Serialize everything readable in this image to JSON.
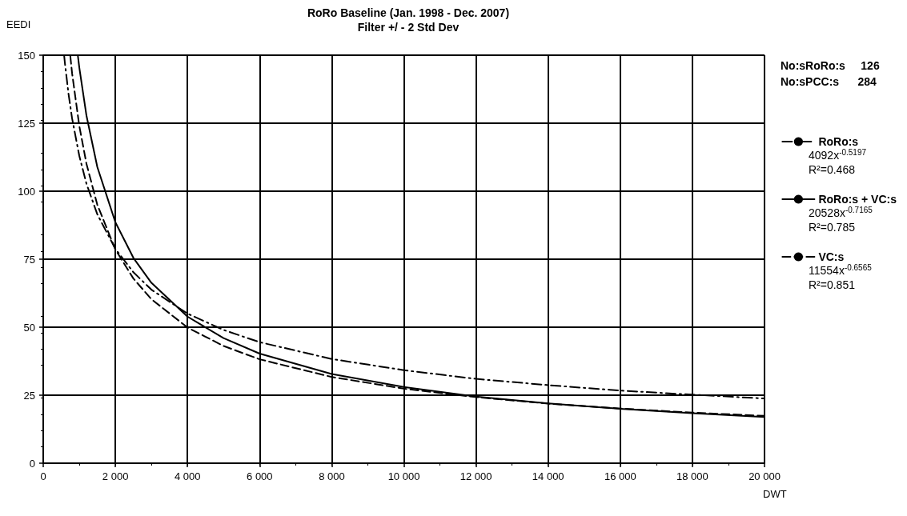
{
  "chart_data": {
    "type": "line",
    "title": "RoRo Baseline (Jan. 1998 - Dec. 2007)",
    "subtitle": "Filter +/ - 2 Std Dev",
    "xlabel": "DWT",
    "ylabel": "EEDI",
    "xlim": [
      0,
      20000
    ],
    "xticks": [
      0,
      {
        "value": 2000,
        "label": "2 000"
      },
      {
        "value": 4000,
        "label": "4 000"
      },
      {
        "value": 6000,
        "label": "6 000"
      },
      {
        "value": 8000,
        "label": "8 000"
      },
      {
        "value": 10000,
        "label": "10 000"
      },
      {
        "value": 12000,
        "label": "12 000"
      },
      {
        "value": 14000,
        "label": "14 000"
      },
      {
        "value": 16000,
        "label": "16 000"
      },
      {
        "value": 18000,
        "label": "18 000"
      },
      {
        "value": 20000,
        "label": "20 000"
      }
    ],
    "ylim": [
      0,
      150
    ],
    "yticks": [
      0,
      25,
      50,
      75,
      100,
      125,
      150
    ],
    "grid": true,
    "legend": "right",
    "marker": "none",
    "annotations": [
      "No:sRoRo:s     126",
      "No:sPCC:s      284",
      "4092x$^{-0.5197}$",
      "R²=0.468",
      "20528x$^{-0.7165}$",
      "R²=0.785",
      "11554x$^{-0.6565}$",
      "R²=0.851"
    ],
    "series": [
      {
        "name": "RoRo:s",
        "color": "#000000",
        "line_style": "dashdot",
        "x": [
          580,
          600,
          700,
          800,
          1000,
          1200,
          1500,
          2000,
          2500,
          3000,
          4000,
          5000,
          6000,
          8000,
          10000,
          12000,
          14000,
          16000,
          18000,
          20000
        ],
        "values": [
          149.9,
          147.2,
          135.9,
          126.8,
          113.0,
          102.7,
          91.5,
          78.8,
          70.2,
          63.8,
          55.0,
          49.0,
          44.5,
          38.3,
          34.2,
          31.0,
          28.7,
          26.7,
          25.2,
          23.8
        ]
      },
      {
        "name": "RoRo:s + VC:s",
        "color": "#000000",
        "line_style": "solid",
        "x": [
          960,
          1000,
          1200,
          1500,
          2000,
          2500,
          3000,
          4000,
          5000,
          6000,
          8000,
          10000,
          12000,
          14000,
          16000,
          18000,
          20000
        ],
        "values": [
          149.9,
          145.5,
          127.7,
          108.9,
          88.6,
          75.5,
          66.3,
          53.9,
          46.0,
          40.3,
          32.8,
          28.0,
          24.5,
          22.0,
          20.0,
          18.4,
          17.0
        ]
      },
      {
        "name": "VC:s",
        "color": "#000000",
        "line_style": "dashed",
        "x": [
          750,
          800,
          1000,
          1200,
          1500,
          2000,
          2500,
          3000,
          4000,
          5000,
          6000,
          8000,
          10000,
          12000,
          14000,
          16000,
          18000,
          20000
        ],
        "values": [
          149.8,
          143.4,
          124.0,
          110.0,
          95.0,
          78.6,
          67.9,
          60.3,
          49.9,
          43.1,
          38.2,
          31.7,
          27.4,
          24.3,
          21.9,
          20.1,
          18.6,
          17.4
        ]
      }
    ]
  }
}
